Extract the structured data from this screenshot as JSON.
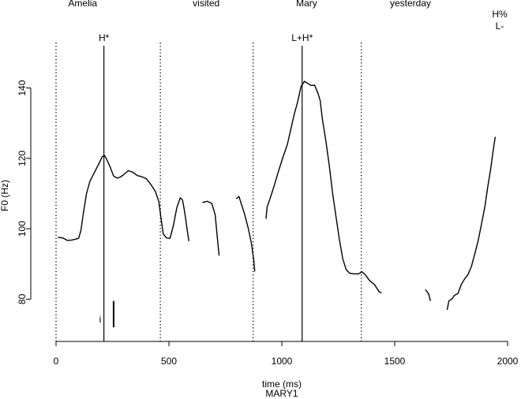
{
  "chart_data": {
    "type": "line",
    "title": "",
    "caption": "MARY1",
    "xlabel": "time (ms)",
    "ylabel": "F0 (Hz)",
    "xlim": [
      0,
      2000
    ],
    "ylim": [
      68,
      152
    ],
    "xticks": [
      0,
      500,
      1000,
      1500,
      2000
    ],
    "yticks": [
      80,
      100,
      120,
      140
    ],
    "grid": false,
    "words": [
      {
        "text": "Amelia",
        "x": 118
      },
      {
        "text": "visited",
        "x": 665
      },
      {
        "text": "Mary",
        "x": 1110
      },
      {
        "text": "yesterday",
        "x": 1570
      }
    ],
    "word_boundaries": [
      0,
      462,
      873,
      1352
    ],
    "pitch_accents": [
      {
        "label": "H*",
        "x": 212
      },
      {
        "label": "L+H*",
        "x": 1090
      }
    ],
    "boundary_tones": [
      "H%",
      "L-"
    ],
    "marker": {
      "label": "i",
      "x": 255,
      "y_from": 72,
      "y_to": 79.5
    },
    "series": [
      {
        "values": [
          [
            10,
            97.6
          ],
          [
            30,
            97.4
          ],
          [
            50,
            96.7
          ],
          [
            70,
            96.8
          ],
          [
            90,
            97.1
          ],
          [
            100,
            97.3
          ],
          [
            110,
            99.5
          ],
          [
            120,
            104
          ],
          [
            135,
            110
          ],
          [
            150,
            113.5
          ],
          [
            170,
            116
          ],
          [
            190,
            118.5
          ],
          [
            205,
            120.5
          ],
          [
            215,
            120.8
          ],
          [
            225,
            119.6
          ],
          [
            240,
            117.5
          ],
          [
            255,
            115
          ],
          [
            270,
            114.4
          ],
          [
            285,
            114.7
          ],
          [
            300,
            115.4
          ],
          [
            320,
            116.5
          ],
          [
            340,
            116.1
          ],
          [
            360,
            115.1
          ],
          [
            380,
            114.8
          ],
          [
            400,
            114.2
          ],
          [
            420,
            112.6
          ],
          [
            440,
            110.6
          ],
          [
            455,
            107.8
          ],
          [
            465,
            103
          ],
          [
            475,
            98.5
          ],
          [
            490,
            97.4
          ],
          [
            505,
            97.3
          ],
          [
            520,
            101
          ],
          [
            535,
            106
          ],
          [
            550,
            108.8
          ],
          [
            560,
            108.2
          ],
          [
            568,
            105.5
          ],
          [
            575,
            102.5
          ],
          [
            580,
            100
          ],
          [
            588,
            96.6
          ]
        ]
      },
      {
        "values": [
          [
            650,
            107.5
          ],
          [
            670,
            107.8
          ],
          [
            690,
            107.2
          ],
          [
            705,
            104
          ],
          [
            715,
            97
          ],
          [
            722,
            92.5
          ]
        ]
      },
      {
        "values": [
          [
            800,
            108.6
          ],
          [
            810,
            109.2
          ],
          [
            820,
            107.2
          ],
          [
            835,
            104.2
          ],
          [
            850,
            100.5
          ],
          [
            865,
            96
          ],
          [
            876,
            91
          ],
          [
            880,
            88
          ]
        ]
      },
      {
        "values": [
          [
            930,
            103
          ],
          [
            935,
            106.2
          ],
          [
            948,
            108.6
          ],
          [
            965,
            112
          ],
          [
            985,
            116.3
          ],
          [
            1005,
            120.3
          ],
          [
            1025,
            124
          ],
          [
            1040,
            128.3
          ],
          [
            1055,
            132.5
          ],
          [
            1070,
            136
          ],
          [
            1085,
            140.4
          ],
          [
            1100,
            141.9
          ],
          [
            1115,
            141.3
          ],
          [
            1130,
            140.7
          ],
          [
            1145,
            140.8
          ],
          [
            1160,
            138.5
          ],
          [
            1170,
            136.4
          ],
          [
            1180,
            131
          ],
          [
            1195,
            125
          ],
          [
            1210,
            118
          ],
          [
            1225,
            110
          ],
          [
            1240,
            103.5
          ],
          [
            1255,
            97
          ],
          [
            1270,
            91.5
          ],
          [
            1285,
            88.4
          ],
          [
            1300,
            87.4
          ],
          [
            1320,
            87.2
          ],
          [
            1340,
            87.2
          ],
          [
            1355,
            87.8
          ],
          [
            1370,
            86.9
          ],
          [
            1390,
            85.2
          ],
          [
            1410,
            84.2
          ],
          [
            1430,
            82.2
          ],
          [
            1440,
            81.8
          ]
        ]
      },
      {
        "values": [
          [
            1637,
            82.6
          ],
          [
            1650,
            81.6
          ],
          [
            1658,
            79.6
          ]
        ]
      },
      {
        "values": [
          [
            1733,
            77.1
          ],
          [
            1740,
            79.5
          ],
          [
            1752,
            80
          ],
          [
            1765,
            81.1
          ],
          [
            1780,
            81.6
          ],
          [
            1795,
            84.2
          ],
          [
            1810,
            85.8
          ],
          [
            1825,
            87
          ],
          [
            1840,
            89.3
          ],
          [
            1855,
            92.9
          ],
          [
            1870,
            96.7
          ],
          [
            1885,
            101.5
          ],
          [
            1900,
            106.5
          ],
          [
            1912,
            111.8
          ],
          [
            1925,
            117
          ],
          [
            1935,
            121.7
          ],
          [
            1945,
            126
          ]
        ]
      }
    ]
  }
}
